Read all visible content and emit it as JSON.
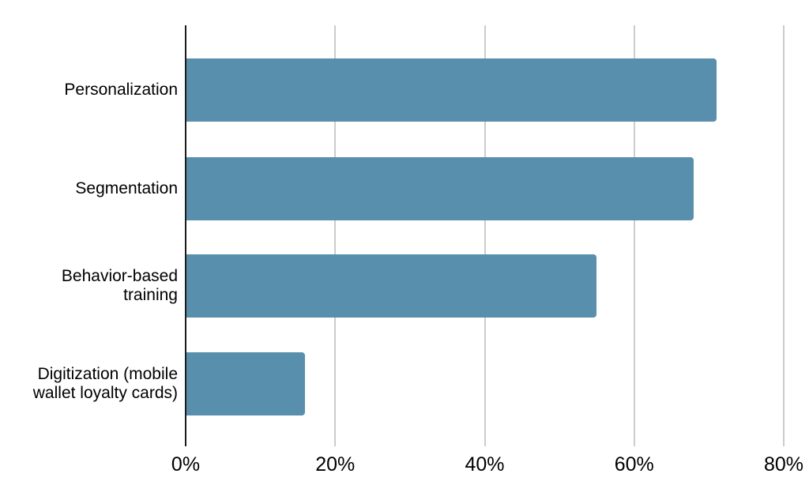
{
  "chart_data": {
    "type": "bar",
    "orientation": "horizontal",
    "title": "",
    "xlabel": "",
    "ylabel": "",
    "categories": [
      "Personalization",
      "Segmentation",
      "Behavior-based training",
      "Digitization (mobile wallet loyalty cards)"
    ],
    "values": [
      71,
      68,
      55,
      16
    ],
    "unit": "%",
    "xlim": [
      0,
      80
    ],
    "x_ticks": [
      {
        "value": 0,
        "label": "0%"
      },
      {
        "value": 20,
        "label": "20%"
      },
      {
        "value": 40,
        "label": "40%"
      },
      {
        "value": 60,
        "label": "60%"
      },
      {
        "value": 80,
        "label": "80%"
      }
    ],
    "grid": true,
    "legend": false,
    "colors": {
      "bar": "#588FAD",
      "grid": "#CCCCCC",
      "axis": "#1B1B1B",
      "text": "#000000",
      "background": "#FFFFFF"
    }
  }
}
